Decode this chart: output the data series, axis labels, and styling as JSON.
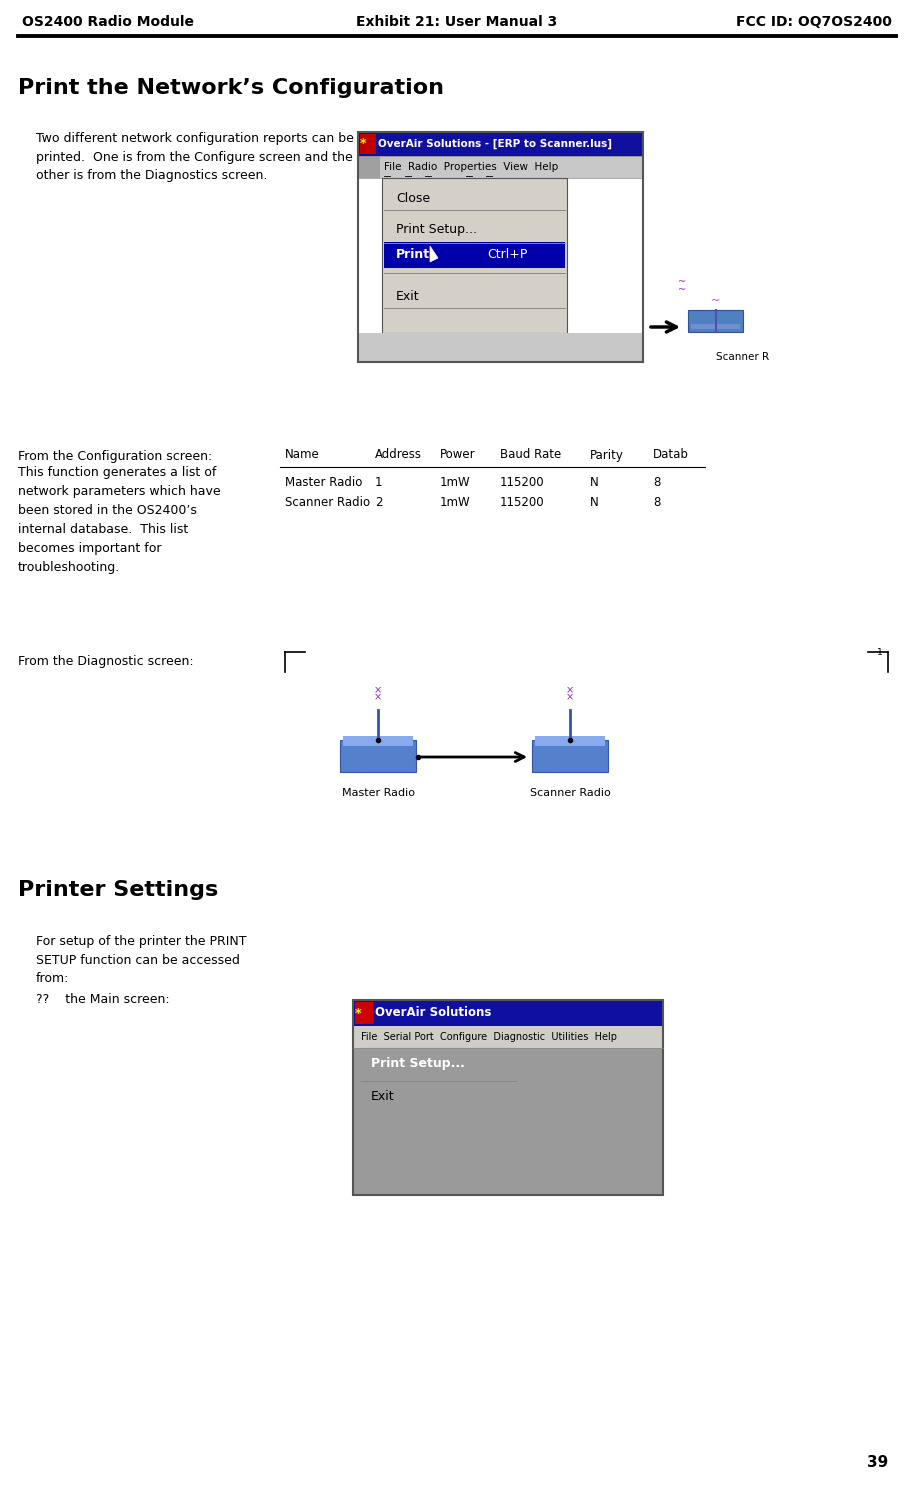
{
  "header_left": "OS2400 Radio Module",
  "header_center": "Exhibit 21: User Manual 3",
  "header_right": "FCC ID: OQ7OS2400",
  "page_number": "39",
  "title": "Print the Network’s Configuration",
  "section1_body": "Two different network configuration reports can be\nprinted.  One is from the Configure screen and the\nother is from the Diagnostics screen.",
  "config_screen_label": "From the Configuration screen:",
  "config_screen_body": "This function generates a list of\nnetwork parameters which have\nbeen stored in the OS2400’s\ninternal database.  This list\nbecomes important for\ntroubleshooting.",
  "diagnostic_label": "From the Diagnostic screen:",
  "section2_title": "Printer Settings",
  "printer_body": "For setup of the printer the PRINT\nSETUP function can be accessed\nfrom:",
  "printer_bullet": "??    the Main screen:",
  "bg_color": "#ffffff",
  "text_color": "#000000",
  "header_font_size": 10,
  "title_font_size": 16,
  "body_font_size": 9,
  "label_font_size": 9,
  "tbl_headers": [
    "Name",
    "Address",
    "Power",
    "Baud Rate",
    "Parity",
    "Datab"
  ],
  "tbl_rows": [
    [
      "Master Radio",
      "1",
      "1mW",
      "115200",
      "N",
      "8"
    ],
    [
      "Scanner Radio",
      "2",
      "1mW",
      "115200",
      "N",
      "8"
    ]
  ]
}
